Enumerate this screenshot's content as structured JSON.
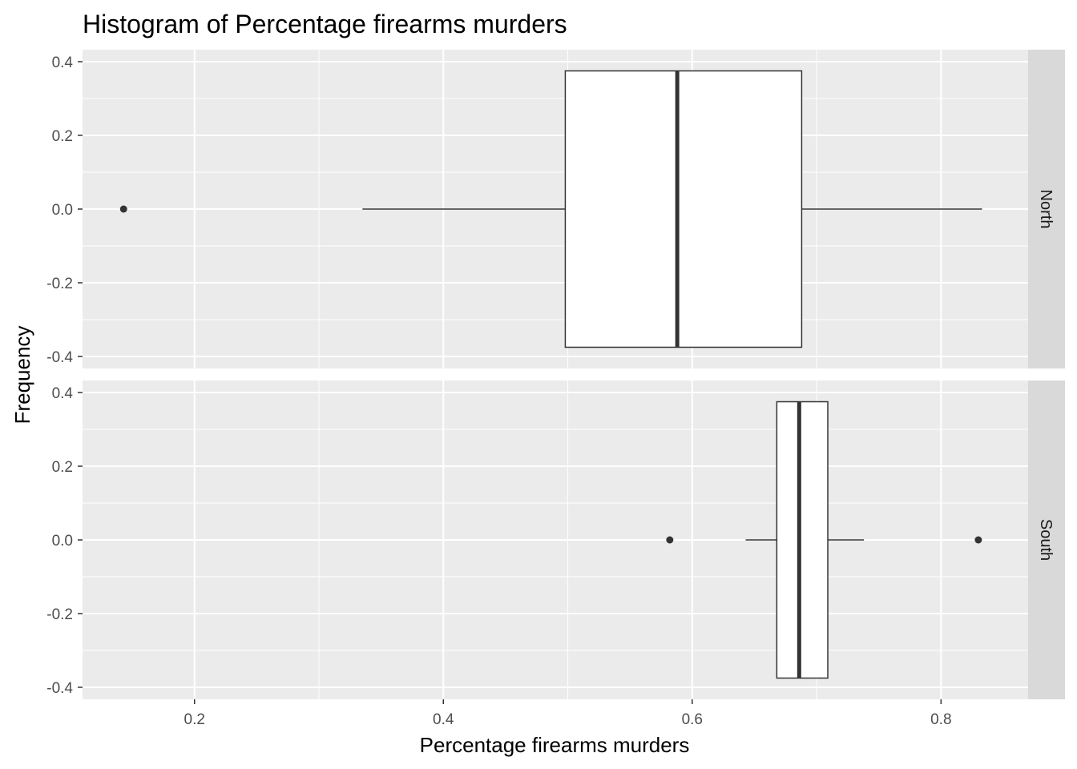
{
  "chart_data": {
    "type": "boxplot",
    "title": "Histogram of Percentage firearms murders",
    "xlabel": "Percentage firearms murders",
    "ylabel": "Frequency",
    "xlim": [
      0.11,
      0.87
    ],
    "ylim": [
      -0.4,
      0.4
    ],
    "x_ticks": [
      0.2,
      0.4,
      0.6,
      0.8
    ],
    "x_tick_labels": [
      "0.2",
      "0.4",
      "0.6",
      "0.8"
    ],
    "y_ticks": [
      0.4,
      0.2,
      0.0,
      -0.2,
      -0.4
    ],
    "y_tick_labels": [
      "0.4",
      "0.2",
      "0.0",
      "-0.2",
      "-0.4"
    ],
    "grid": true,
    "facets": [
      {
        "label": "North",
        "whisker_low": 0.335,
        "q1": 0.498,
        "median": 0.588,
        "q3": 0.688,
        "whisker_high": 0.833,
        "outliers": [
          0.143
        ]
      },
      {
        "label": "South",
        "whisker_low": 0.643,
        "q1": 0.668,
        "median": 0.686,
        "q3": 0.709,
        "whisker_high": 0.738,
        "outliers": [
          0.582,
          0.83
        ]
      }
    ],
    "colors": {
      "panel_background": "#ebebeb",
      "strip_background": "#d9d9d9",
      "box_fill": "#ffffff",
      "box_line": "#333333"
    }
  }
}
